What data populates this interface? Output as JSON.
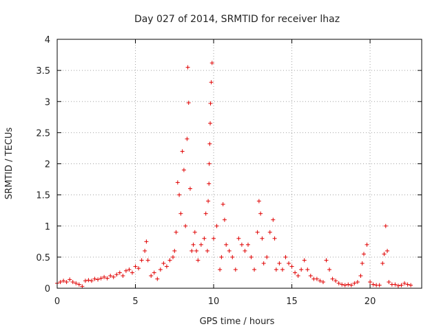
{
  "chart_data": {
    "type": "scatter",
    "title": "Day 027 of 2014, SRMTID for receiver lhaz",
    "xlabel": "GPS time / hours",
    "ylabel": "SRMTID / TECUs",
    "xlim": [
      0,
      23.3
    ],
    "ylim": [
      0,
      4
    ],
    "xticks": [
      0,
      5,
      10,
      15,
      20
    ],
    "xtick_labels": [
      "0",
      "5",
      "10",
      "15",
      "20"
    ],
    "yticks": [
      0,
      0.5,
      1,
      1.5,
      2,
      2.5,
      3,
      3.5,
      4
    ],
    "ytick_labels": [
      "0",
      "0.5",
      "1",
      "1.5",
      "2",
      "2.5",
      "3",
      "3.5",
      "4"
    ],
    "grid": true,
    "marker": "+",
    "color": "#e00000",
    "series": [
      {
        "name": "lhaz",
        "x": [
          0.0,
          0.2,
          0.4,
          0.6,
          0.8,
          1.0,
          1.2,
          1.4,
          1.6,
          1.8,
          2.0,
          2.2,
          2.4,
          2.6,
          2.8,
          3.0,
          3.2,
          3.4,
          3.6,
          3.8,
          4.0,
          4.2,
          4.4,
          4.6,
          4.8,
          5.0,
          5.2,
          5.4,
          5.6,
          5.7,
          5.8,
          6.0,
          6.2,
          6.4,
          6.6,
          6.8,
          7.0,
          7.2,
          7.4,
          7.5,
          7.6,
          7.7,
          7.8,
          7.9,
          8.0,
          8.1,
          8.2,
          8.3,
          8.35,
          8.4,
          8.5,
          8.6,
          8.7,
          8.8,
          8.9,
          9.0,
          9.2,
          9.4,
          9.5,
          9.6,
          9.65,
          9.7,
          9.72,
          9.75,
          9.78,
          9.8,
          9.85,
          9.9,
          10.0,
          10.2,
          10.4,
          10.5,
          10.6,
          10.7,
          10.8,
          11.0,
          11.2,
          11.4,
          11.6,
          11.8,
          12.0,
          12.2,
          12.4,
          12.6,
          12.8,
          12.9,
          13.0,
          13.1,
          13.2,
          13.4,
          13.6,
          13.8,
          13.9,
          14.0,
          14.2,
          14.4,
          14.6,
          14.8,
          15.0,
          15.2,
          15.4,
          15.6,
          15.8,
          16.0,
          16.2,
          16.4,
          16.6,
          16.8,
          17.0,
          17.2,
          17.4,
          17.6,
          17.8,
          18.0,
          18.2,
          18.4,
          18.6,
          18.8,
          19.0,
          19.2,
          19.4,
          19.5,
          19.6,
          19.8,
          20.0,
          20.2,
          20.4,
          20.6,
          20.8,
          20.9,
          21.0,
          21.1,
          21.2,
          21.4,
          21.6,
          21.8,
          22.0,
          22.2,
          22.4,
          22.6
        ],
        "y": [
          0.08,
          0.1,
          0.12,
          0.1,
          0.14,
          0.1,
          0.08,
          0.06,
          0.03,
          0.12,
          0.13,
          0.12,
          0.15,
          0.14,
          0.16,
          0.18,
          0.16,
          0.2,
          0.18,
          0.22,
          0.25,
          0.2,
          0.28,
          0.3,
          0.25,
          0.35,
          0.32,
          0.45,
          0.6,
          0.75,
          0.45,
          0.2,
          0.25,
          0.15,
          0.3,
          0.4,
          0.35,
          0.45,
          0.5,
          0.6,
          0.9,
          1.7,
          1.5,
          1.2,
          2.2,
          1.9,
          1.0,
          2.4,
          3.55,
          2.98,
          1.6,
          0.6,
          0.7,
          0.9,
          0.6,
          0.45,
          0.7,
          0.8,
          1.2,
          0.6,
          1.4,
          1.68,
          2.0,
          2.32,
          2.65,
          2.97,
          3.31,
          3.62,
          0.8,
          1.0,
          0.3,
          0.5,
          1.35,
          1.1,
          0.7,
          0.6,
          0.5,
          0.3,
          0.8,
          0.7,
          0.6,
          0.7,
          0.5,
          0.3,
          0.9,
          1.4,
          1.2,
          0.8,
          0.4,
          0.5,
          0.9,
          1.1,
          0.8,
          0.3,
          0.4,
          0.3,
          0.5,
          0.4,
          0.35,
          0.25,
          0.2,
          0.3,
          0.45,
          0.3,
          0.2,
          0.15,
          0.15,
          0.12,
          0.1,
          0.45,
          0.3,
          0.15,
          0.12,
          0.08,
          0.06,
          0.05,
          0.06,
          0.05,
          0.08,
          0.1,
          0.2,
          0.4,
          0.55,
          0.7,
          0.1,
          0.06,
          0.05,
          0.05,
          0.4,
          0.55,
          1.0,
          0.6,
          0.1,
          0.06,
          0.06,
          0.04,
          0.05,
          0.08,
          0.06,
          0.05
        ]
      }
    ]
  }
}
